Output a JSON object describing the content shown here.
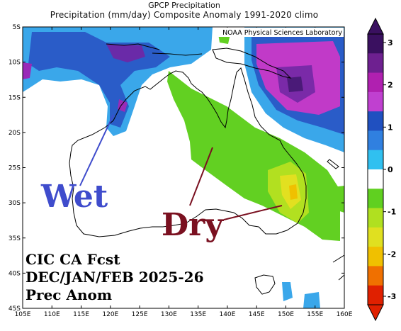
{
  "header": {
    "title": "GPCP Precipitation",
    "subtitle": "Precipitation (mm/day) Composite Anomaly 1991-2020 climo"
  },
  "credit": "NOAA Physical Sciences Laboratory",
  "annotations": {
    "wet": "Wet",
    "dry": "Dry",
    "wet_color": "#3f4ccc",
    "dry_color": "#7a1020"
  },
  "forecast_label": {
    "line1": "CIC CA Fcst",
    "line2": "DEC/JAN/FEB 2025-26",
    "line3": "Prec Anom"
  },
  "axes": {
    "lat_labels": [
      "5S",
      "10S",
      "15S",
      "20S",
      "25S",
      "30S",
      "35S",
      "40S",
      "45S"
    ],
    "lon_labels": [
      "105E",
      "110E",
      "115E",
      "120E",
      "125E",
      "130E",
      "135E",
      "140E",
      "145E",
      "150E",
      "155E",
      "160E"
    ]
  },
  "colorbar": {
    "labels": [
      "3",
      "2",
      "1",
      "0",
      "-1",
      "-2",
      "-3"
    ],
    "colors": [
      "#3a1060",
      "#6e2090",
      "#b020b0",
      "#c040d0",
      "#2050c0",
      "#3080e0",
      "#30c0f0",
      "#ffffff",
      "#60d020",
      "#b0e020",
      "#e0e020",
      "#f0c000",
      "#f07000",
      "#e02000"
    ]
  }
}
